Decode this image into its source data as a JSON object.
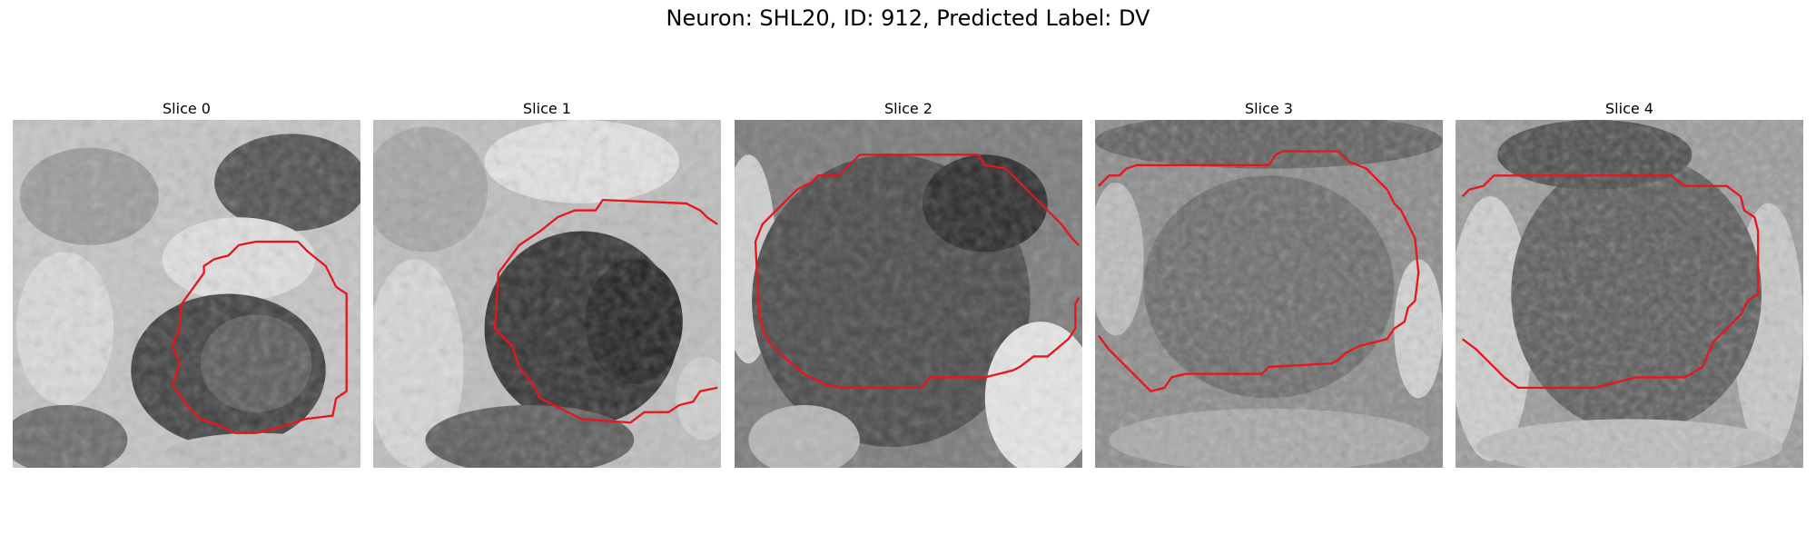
{
  "figure": {
    "title": "Neuron: SHL20, ID: 912, Predicted Label: DV"
  },
  "slices": [
    {
      "label": "Slice 0"
    },
    {
      "label": "Slice 1"
    },
    {
      "label": "Slice 2"
    },
    {
      "label": "Slice 3"
    },
    {
      "label": "Slice 4"
    }
  ],
  "colors": {
    "contour": "#e8151b",
    "background": "#ffffff"
  }
}
